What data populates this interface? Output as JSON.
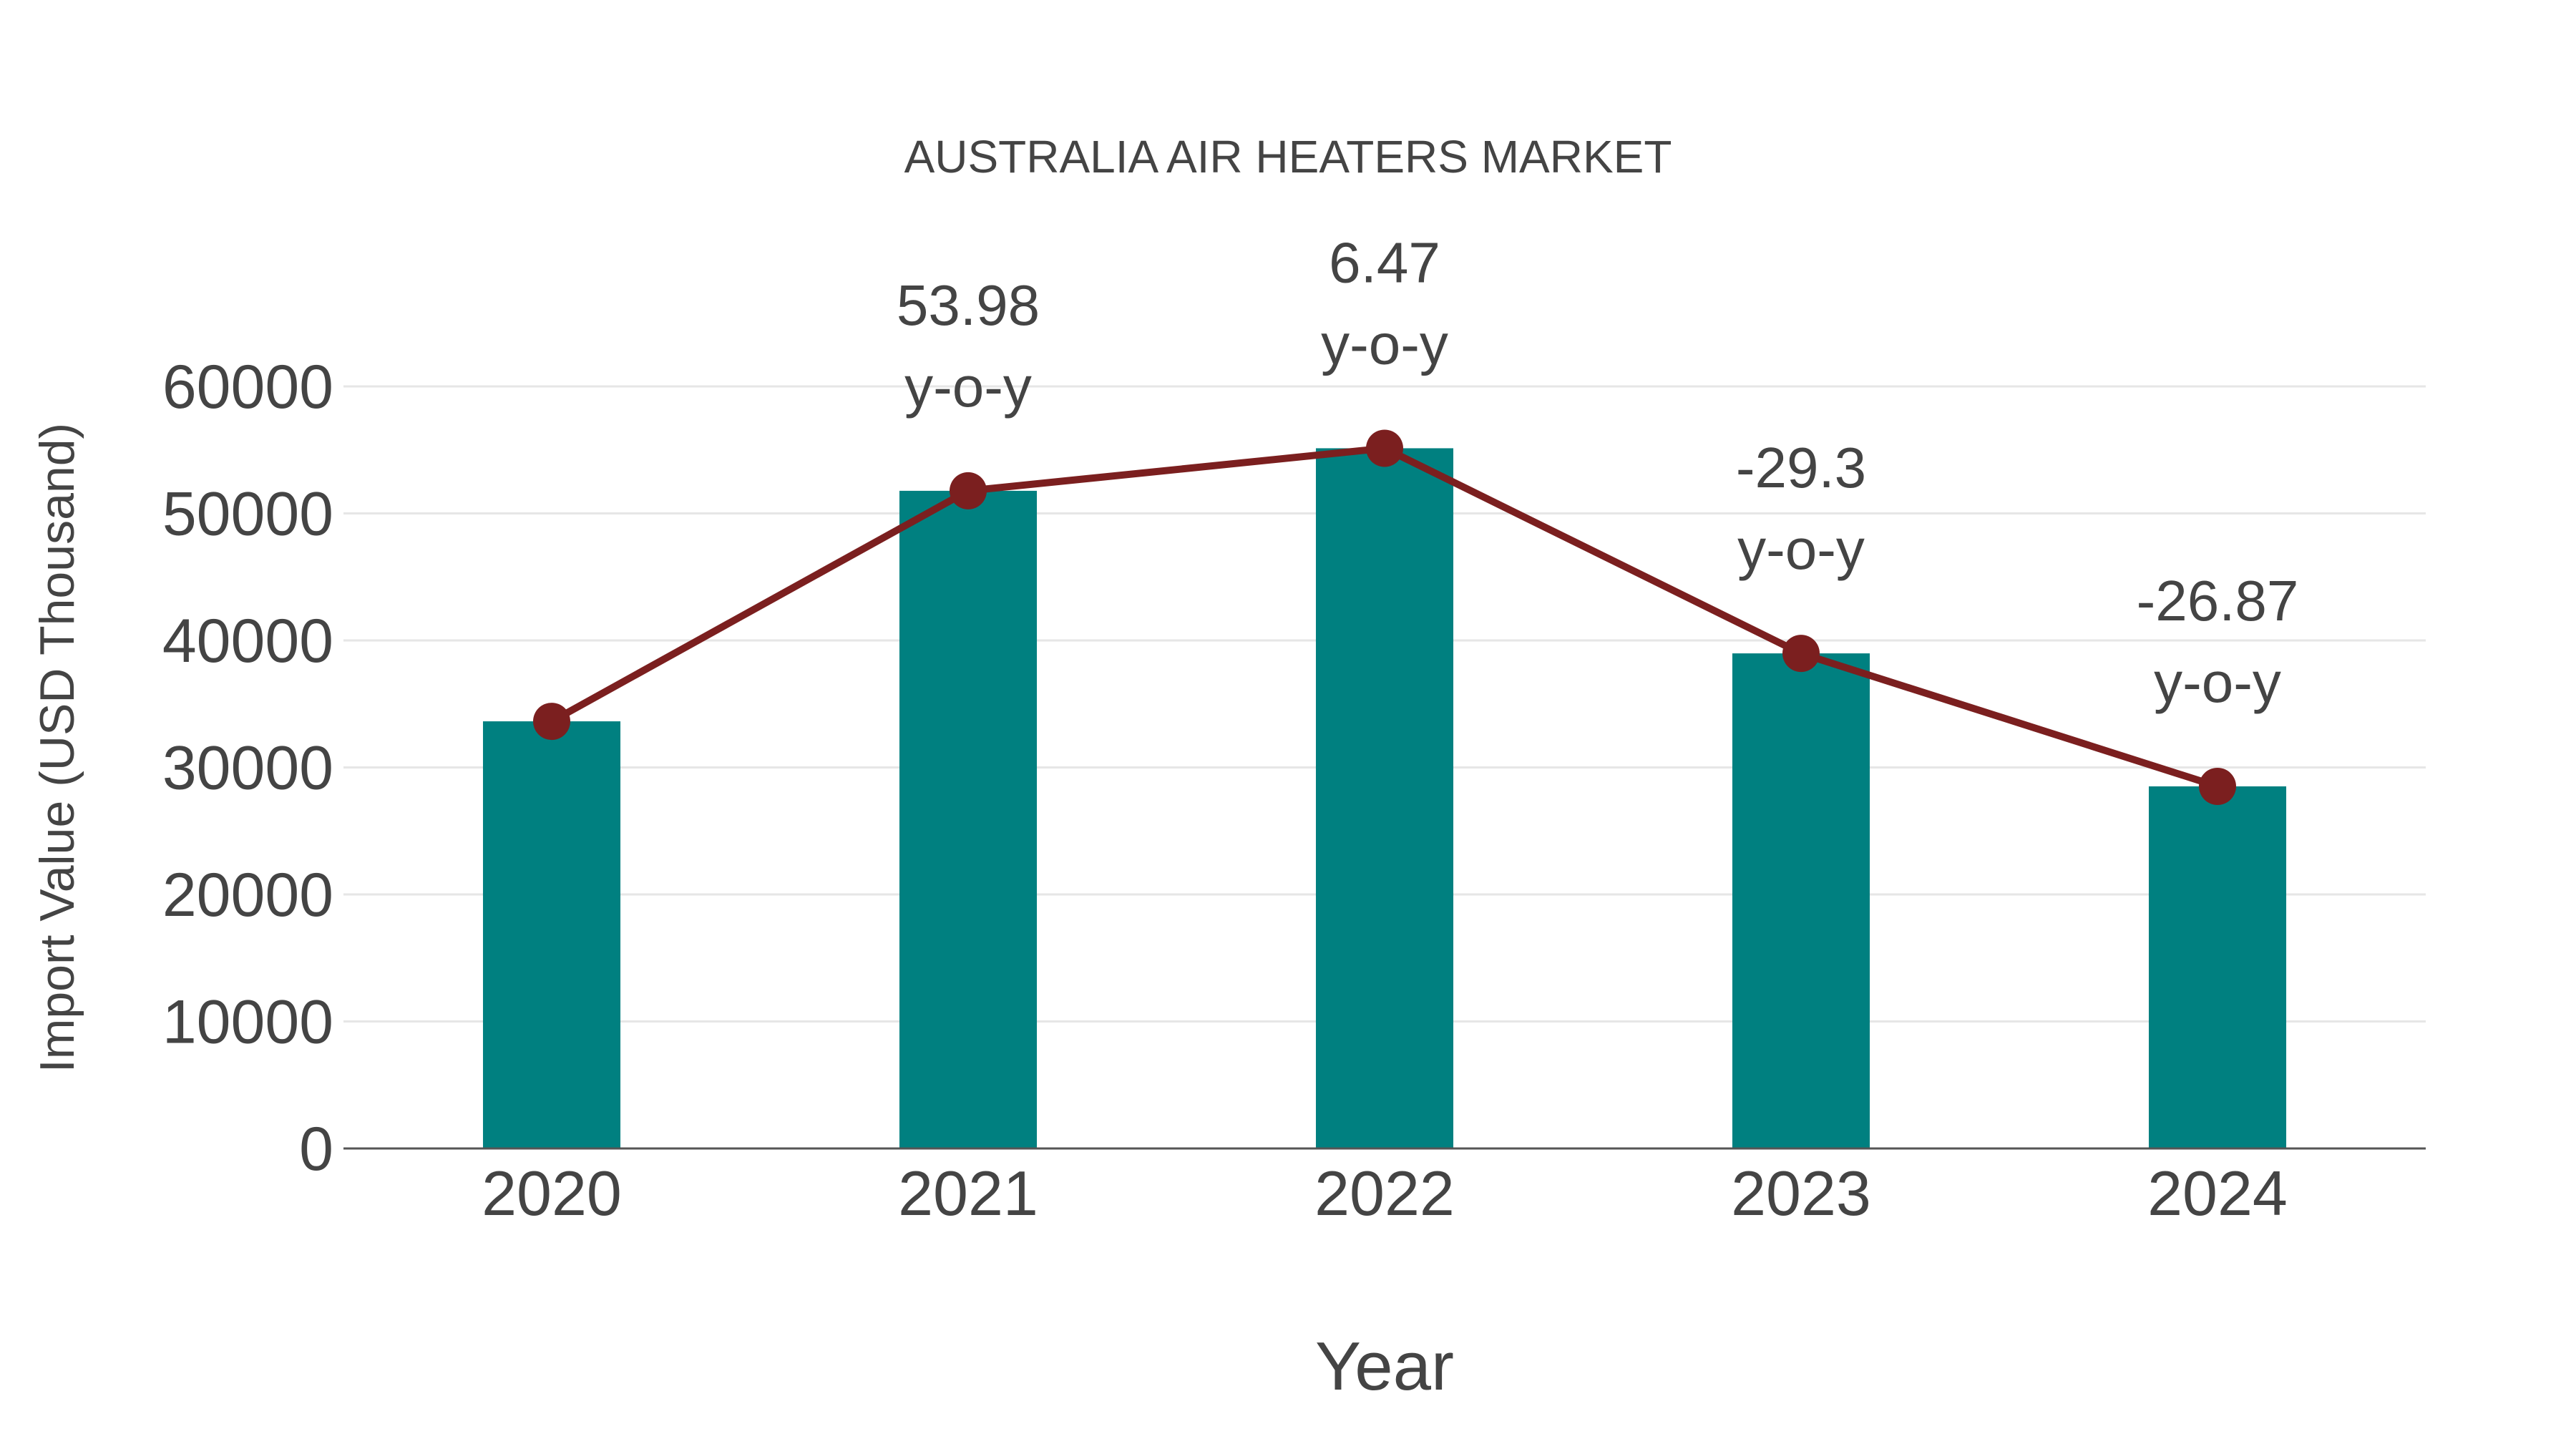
{
  "chart": {
    "title": "AUSTRALIA AIR HEATERS MARKET",
    "x_axis_title": "Year",
    "y_axis_title": "Import Value (USD Thousand)"
  },
  "colors": {
    "bar": "#008080",
    "line": "#7B1F1F",
    "text": "#444444",
    "grid": "#e6e6e6",
    "axis": "#555555"
  },
  "chart_data": {
    "type": "bar",
    "title": "AUSTRALIA AIR HEATERS MARKET",
    "xlabel": "Year",
    "ylabel": "Import Value (USD Thousand)",
    "categories": [
      "2020",
      "2021",
      "2022",
      "2023",
      "2024"
    ],
    "series": [
      {
        "name": "Import Value",
        "type": "bar",
        "color": "#008080",
        "values": [
          33630,
          51780,
          55130,
          38980,
          28510
        ]
      },
      {
        "name": "Import Value (trend)",
        "type": "line",
        "color": "#7B1F1F",
        "marker": "circle",
        "values": [
          33630,
          51780,
          55130,
          38980,
          28510
        ]
      }
    ],
    "annotations": [
      {
        "category": "2021",
        "value": "53.98",
        "suffix": "y-o-y"
      },
      {
        "category": "2022",
        "value": "6.47",
        "suffix": "y-o-y"
      },
      {
        "category": "2023",
        "value": "-29.3",
        "suffix": "y-o-y"
      },
      {
        "category": "2024",
        "value": "-26.87",
        "suffix": "y-o-y"
      }
    ],
    "yticks": [
      0,
      10000,
      20000,
      30000,
      40000,
      50000,
      60000
    ],
    "ylim": [
      0,
      60000
    ],
    "grid": true,
    "legend": "none"
  }
}
